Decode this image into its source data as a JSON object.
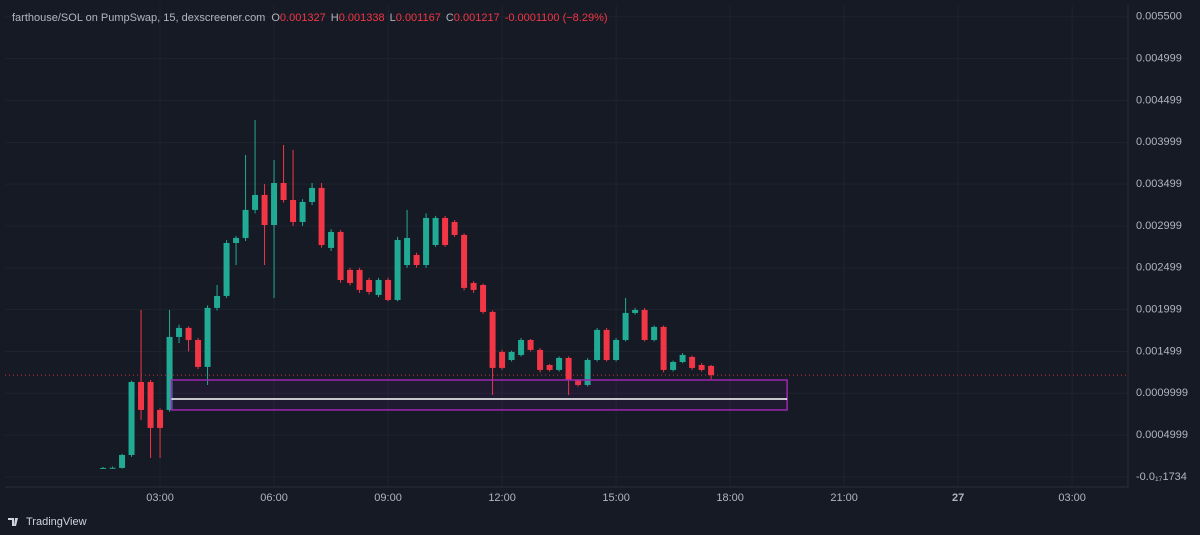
{
  "chart_data": {
    "type": "candlestick",
    "symbol": "farthouse/SOL on PumpSwap, 15, dexscreener.com",
    "ohlc_letters": [
      "O",
      "H",
      "L",
      "C"
    ],
    "change_label": "-0.0001100 (−8.29%)",
    "brand": "TradingView",
    "up_color": "#22ab94",
    "down_color": "#f23645",
    "grid": true,
    "x": [
      1.5,
      1.75,
      2,
      2.25,
      2.5,
      2.75,
      3,
      3.25,
      3.5,
      3.75,
      4,
      4.25,
      4.5,
      4.75,
      5,
      5.25,
      5.5,
      5.75,
      6,
      6.25,
      6.5,
      6.75,
      7,
      7.25,
      7.5,
      7.75,
      8,
      8.25,
      8.5,
      8.75,
      9,
      9.25,
      9.5,
      9.75,
      10,
      10.25,
      10.5,
      10.75,
      11,
      11.25,
      11.5,
      11.75,
      12,
      12.25,
      12.5,
      12.75,
      13,
      13.25,
      13.5,
      13.75,
      14,
      14.25,
      14.5,
      14.75,
      15,
      15.25,
      15.5,
      15.75,
      16,
      16.25,
      16.5,
      16.75,
      17,
      17.25,
      17.5
    ],
    "open": [
      0.000108,
      0.000108,
      0.000108,
      0.000263,
      0.001135,
      0.001135,
      0.000801,
      0.000801,
      0.001673,
      0.001781,
      0.001637,
      0.001315,
      0.00202,
      0.002163,
      0.002796,
      0.002856,
      0.003191,
      0.00337,
      0.003011,
      0.003513,
      0.00331,
      0.003047,
      0.003286,
      0.003454,
      0.002737,
      0.002928,
      0.002474,
      0.002474,
      0.002354,
      0.002175,
      0.002354,
      0.002115,
      0.002533,
      0.002653,
      0.002533,
      0.002772,
      0.003095,
      0.003047,
      0.002892,
      0.002318,
      0.002294,
      0.001972,
      0.001494,
      0.001398,
      0.001458,
      0.001637,
      0.001518,
      0.001338,
      0.001279,
      0.001422,
      0.001159,
      0.001099,
      0.001398,
      0.001757,
      0.001398,
      0.001637,
      0.00196,
      0.001996,
      0.001637,
      0.001793,
      0.001279,
      0.001374,
      0.001434,
      0.001338,
      0.001327
    ],
    "high": [
      0.00012,
      0.000125,
      0.000275,
      0.00115,
      0.001996,
      0.00116,
      0.00082,
      0.001996,
      0.00182,
      0.0018,
      0.00166,
      0.00205,
      0.002294,
      0.00283,
      0.00288,
      0.003848,
      0.004266,
      0.0035,
      0.003788,
      0.003967,
      0.003908,
      0.00332,
      0.003513,
      0.003513,
      0.00296,
      0.00295,
      0.0025,
      0.0025,
      0.00238,
      0.00238,
      0.00238,
      0.00287,
      0.003191,
      0.00268,
      0.00315,
      0.00312,
      0.00312,
      0.00307,
      0.00291,
      0.00234,
      0.00231,
      0.00199,
      0.00152,
      0.00151,
      0.00166,
      0.00165,
      0.00154,
      0.00135,
      0.00144,
      0.00144,
      0.00117,
      0.00142,
      0.00178,
      0.00178,
      0.00166,
      0.002139,
      0.00202,
      0.00202,
      0.00181,
      0.00181,
      0.00139,
      0.00148,
      0.00145,
      0.00136,
      0.001338
    ],
    "low": [
      0.0001,
      0.0001,
      0.0001,
      0.00024,
      0.000681,
      0.000227,
      0.000227,
      0.00078,
      0.0016,
      0.0015,
      0.00129,
      0.001099,
      0.00199,
      0.00214,
      0.002533,
      0.00282,
      0.00315,
      0.002533,
      0.002139,
      0.00328,
      0.003,
      0.003,
      0.00325,
      0.00274,
      0.0027,
      0.00232,
      0.00229,
      0.0022,
      0.00218,
      0.00215,
      0.0021,
      0.0021,
      0.0025,
      0.0025,
      0.0025,
      0.00275,
      0.00275,
      0.00287,
      0.00223,
      0.0022,
      0.00195,
      0.00098,
      0.00128,
      0.00138,
      0.00144,
      0.0015,
      0.00125,
      0.00126,
      0.00126,
      0.00098,
      0.00108,
      0.00108,
      0.00138,
      0.00138,
      0.00138,
      0.00162,
      0.00194,
      0.00162,
      0.00162,
      0.00125,
      0.00126,
      0.00136,
      0.00128,
      0.00126,
      0.001167
    ],
    "close": [
      0.000108,
      0.00011,
      0.000263,
      0.001135,
      0.000801,
      0.000586,
      0.000586,
      0.001673,
      0.001781,
      0.001637,
      0.001315,
      0.00202,
      0.002163,
      0.002796,
      0.002856,
      0.003191,
      0.00337,
      0.003011,
      0.003513,
      0.00331,
      0.003047,
      0.003286,
      0.003454,
      0.002772,
      0.002928,
      0.002354,
      0.002318,
      0.002235,
      0.002211,
      0.002354,
      0.002115,
      0.002832,
      0.002856,
      0.002533,
      0.003095,
      0.003095,
      0.002772,
      0.002892,
      0.002259,
      0.002235,
      0.001972,
      0.001303,
      0.001303,
      0.001494,
      0.001637,
      0.001518,
      0.001279,
      0.001279,
      0.001422,
      0.001159,
      0.001099,
      0.001398,
      0.001757,
      0.001398,
      0.001637,
      0.00196,
      0.001996,
      0.001637,
      0.001793,
      0.001279,
      0.001374,
      0.001458,
      0.001303,
      0.001279,
      0.001217
    ],
    "zone": {
      "x": [
        3.3,
        19.5
      ],
      "y": [
        0.000801,
        0.001159
      ],
      "line": 0.000932,
      "color": "#9c27b0"
    },
    "xlim": [
      -1.08,
      28.47
    ],
    "xticks": [
      {
        "value": 3,
        "label": "03:00"
      },
      {
        "value": 6,
        "label": "06:00"
      },
      {
        "value": 9,
        "label": "09:00"
      },
      {
        "value": 12,
        "label": "12:00"
      },
      {
        "value": 15,
        "label": "15:00"
      },
      {
        "value": 18,
        "label": "18:00"
      },
      {
        "value": 21,
        "label": "21:00"
      },
      {
        "value": 24,
        "label": "27"
      },
      {
        "value": 27,
        "label": "03:00"
      }
    ],
    "ylim": [
      -0.00012,
      0.00564
    ],
    "yticks": [
      {
        "value": -1.734e-18,
        "label": "-0.0₁₇1734"
      },
      0.0004999,
      0.0009999,
      0.001499,
      0.001999,
      0.002499,
      0.002999,
      0.003499,
      0.003999,
      0.004499,
      0.004999,
      {
        "value": 0.0055,
        "label": "0.005500"
      }
    ]
  }
}
